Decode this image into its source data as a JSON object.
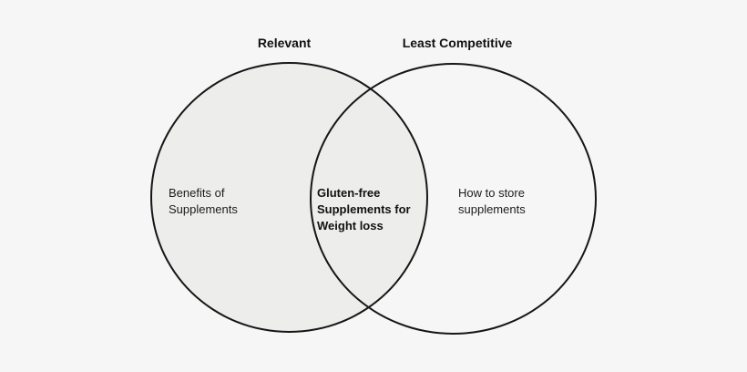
{
  "diagram": {
    "type": "venn",
    "background_color": "#f5f6f5",
    "stroke_color": "#161616",
    "left_circle": {
      "header": "Relevant",
      "fill_color": "#ededec",
      "label_lines": [
        "Benefits of",
        "Supplements"
      ]
    },
    "right_circle": {
      "header": "Least Competitive",
      "fill_color": "transparent",
      "label_lines": [
        "How to store",
        "supplements"
      ]
    },
    "intersection": {
      "label_lines": [
        "Gluten-free",
        "Supplements for",
        "Weight loss"
      ]
    }
  }
}
